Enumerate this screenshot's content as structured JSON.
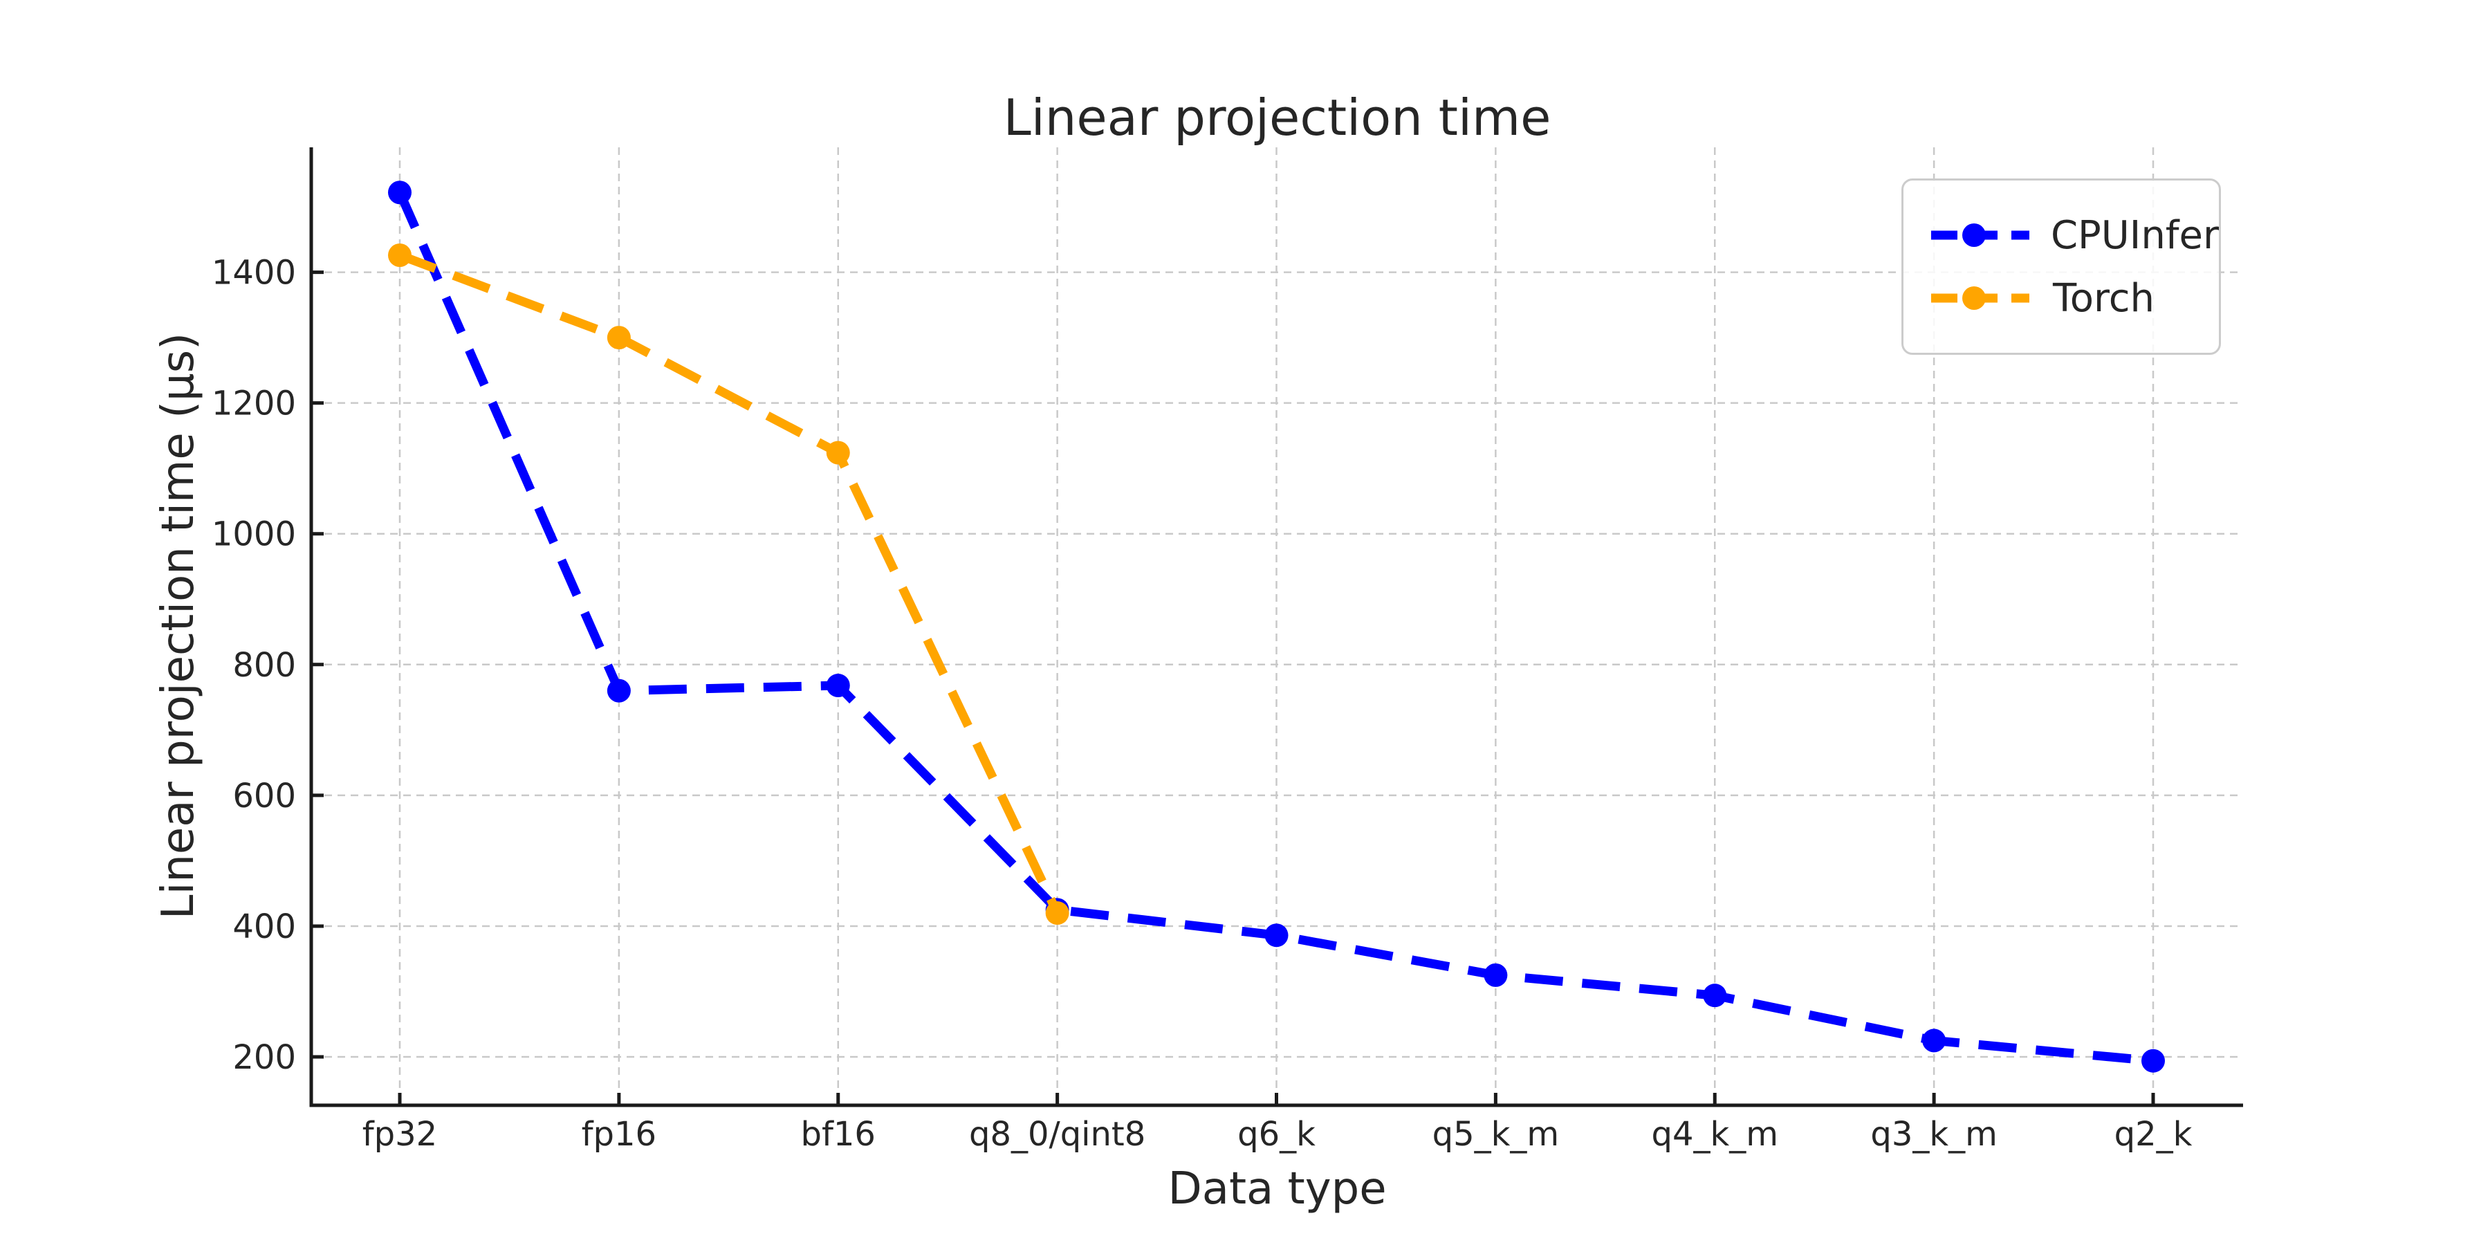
{
  "chart_data": {
    "type": "line",
    "title": "Linear projection time",
    "xlabel": "Data type",
    "ylabel": "Linear projection time (µs)",
    "categories": [
      "fp32",
      "fp16",
      "bf16",
      "q8_0/qint8",
      "q6_k",
      "q5_k_m",
      "q4_k_m",
      "q3_k_m",
      "q2_k"
    ],
    "yticks": [
      200,
      400,
      600,
      800,
      1000,
      1200,
      1400
    ],
    "ylim": [
      126,
      1591
    ],
    "grid": true,
    "legend_position": "upper right",
    "series": [
      {
        "name": "CPUInfer",
        "color": "#0000ff",
        "line_style": "dashed",
        "marker": "circle",
        "values": [
          1522,
          760,
          768,
          425,
          386,
          325,
          294,
          225,
          194
        ]
      },
      {
        "name": "Torch",
        "color": "#ffa500",
        "line_style": "dashed",
        "marker": "circle",
        "values": [
          1426,
          1300,
          1124,
          420
        ]
      }
    ]
  },
  "colors": {
    "grid": "#c9c9c9",
    "axis": "#1a1a1a",
    "text": "#262626",
    "legend_border": "#cccccc"
  }
}
